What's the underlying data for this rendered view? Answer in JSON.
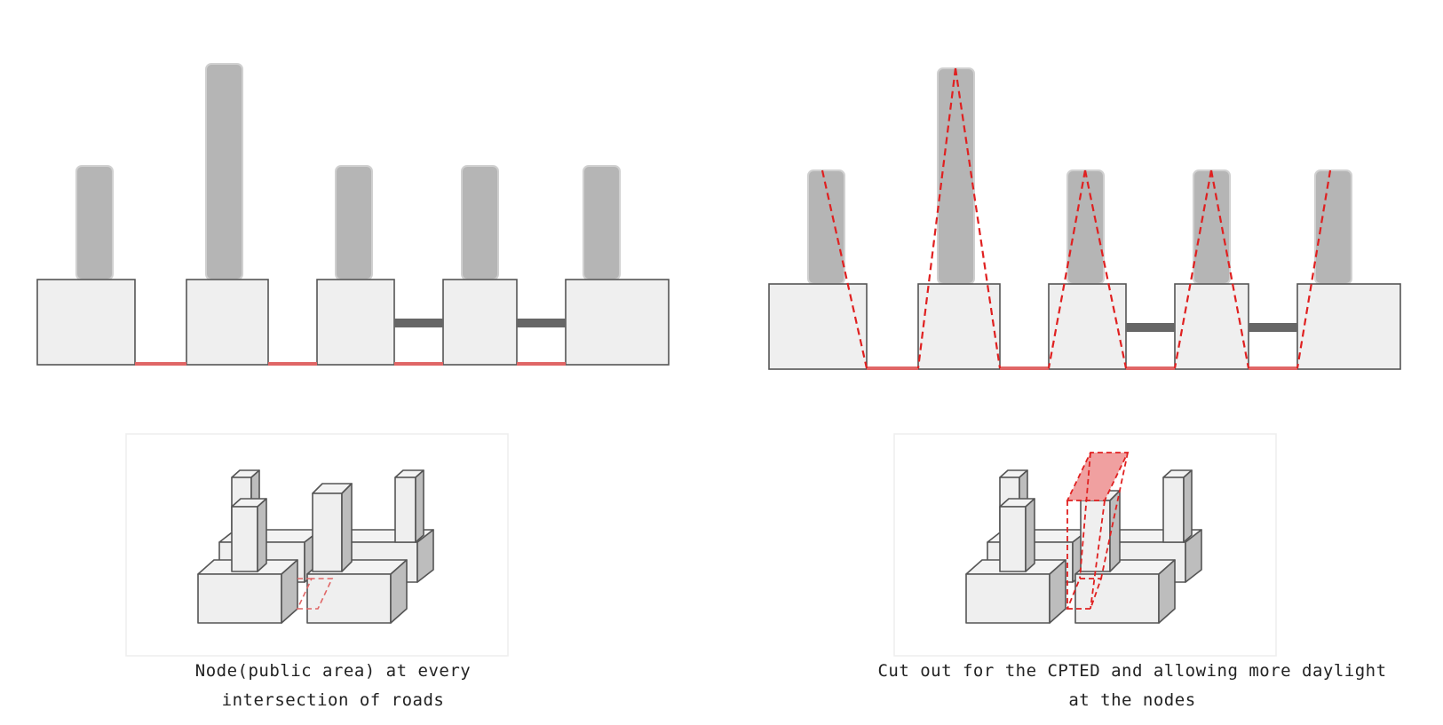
{
  "captions": {
    "left_line1": "Node(public area) at every",
    "left_line2": "intersection of roads",
    "right_line1": "Cut out for the CPTED and allowing more daylight",
    "right_line2": "at the nodes"
  },
  "colors": {
    "tower_fill": "#b5b5b5",
    "base_fill": "#efefef",
    "outline": "#555555",
    "node_red": "#e06666",
    "cut_line_red": "#e02020",
    "bridge_gray": "#666666",
    "cut_fill": "#f0a0a0"
  }
}
